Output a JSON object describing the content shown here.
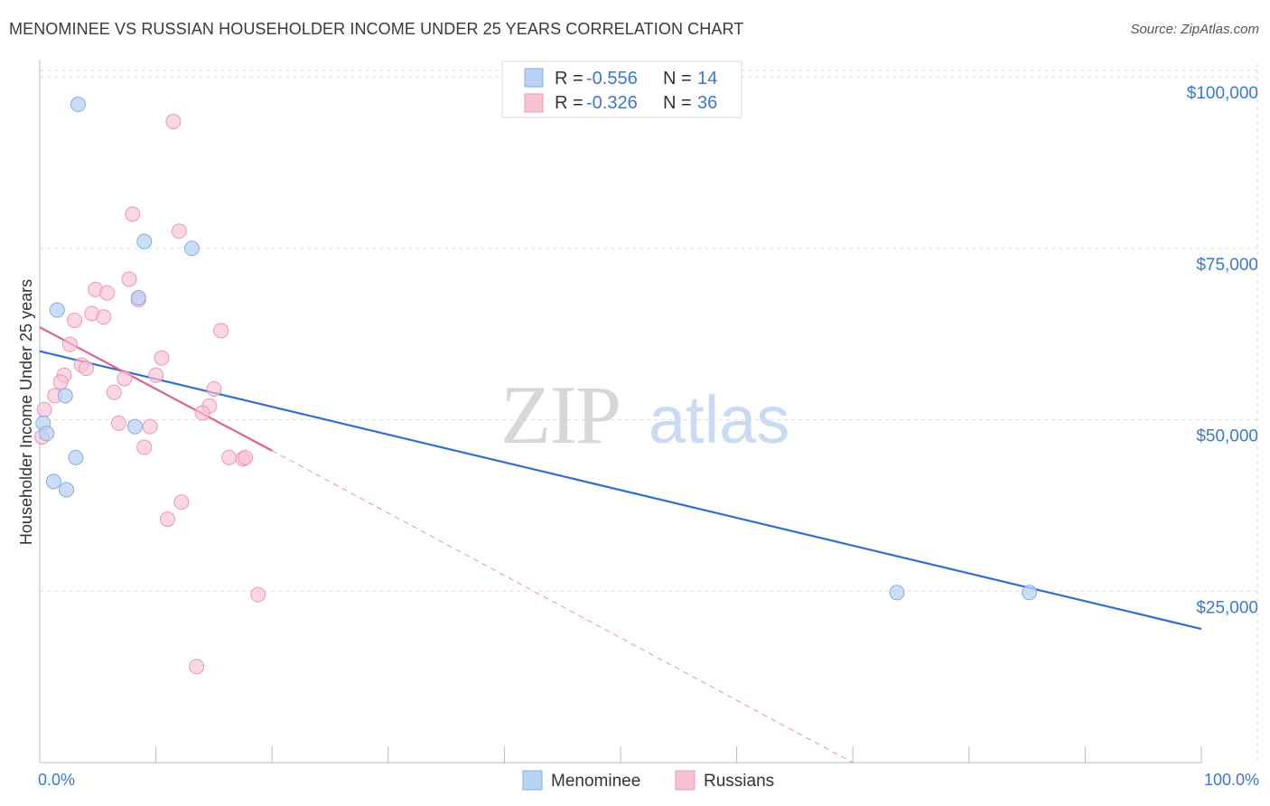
{
  "header": {
    "title": "MENOMINEE VS RUSSIAN HOUSEHOLDER INCOME UNDER 25 YEARS CORRELATION CHART",
    "source": "Source: ZipAtlas.com"
  },
  "watermark": {
    "zip": "ZIP",
    "atlas": "atlas"
  },
  "legend": {
    "rows": [
      {
        "r_label": "R =",
        "r_value": "-0.556",
        "n_label": "N =",
        "n_value": "14"
      },
      {
        "r_label": "R =",
        "r_value": "-0.326",
        "n_label": "N =",
        "n_value": "36"
      }
    ]
  },
  "colors": {
    "menominee_fill": "#b9d3f5",
    "menominee_stroke": "#86acdf",
    "menominee_line": "#2f6fd0",
    "russians_fill": "#f7c2d3",
    "russians_stroke": "#eb98b4",
    "russians_line": "#e0628f",
    "tick_text": "#3b78d0",
    "grid": "#dddddd"
  },
  "chart_data": {
    "type": "scatter",
    "title": "MENOMINEE VS RUSSIAN HOUSEHOLDER INCOME UNDER 25 YEARS CORRELATION CHART",
    "xlabel": "",
    "ylabel": "Householder Income Under 25 years",
    "xlim": [
      0,
      100
    ],
    "ylim": [
      0,
      102000
    ],
    "x_tick_labels": [
      "0.0%",
      "100.0%"
    ],
    "y_ticks": [
      25000,
      50000,
      75000,
      100000
    ],
    "y_tick_labels": [
      "$25,000",
      "$50,000",
      "$75,000",
      "$100,000"
    ],
    "series": [
      {
        "name": "Menominee",
        "points": [
          {
            "x": 3.3,
            "y": 96000
          },
          {
            "x": 9.0,
            "y": 76000
          },
          {
            "x": 13.1,
            "y": 75000
          },
          {
            "x": 8.5,
            "y": 67800
          },
          {
            "x": 1.5,
            "y": 66000
          },
          {
            "x": 2.2,
            "y": 53500
          },
          {
            "x": 8.2,
            "y": 49000
          },
          {
            "x": 0.3,
            "y": 49500
          },
          {
            "x": 0.6,
            "y": 48000
          },
          {
            "x": 3.1,
            "y": 44500
          },
          {
            "x": 1.2,
            "y": 41000
          },
          {
            "x": 2.3,
            "y": 39800
          },
          {
            "x": 73.8,
            "y": 24800
          },
          {
            "x": 85.2,
            "y": 24800
          }
        ],
        "trend": {
          "x0": 0,
          "y0": 60000,
          "x1": 100,
          "y1": 19500
        }
      },
      {
        "name": "Russians",
        "points": [
          {
            "x": 11.5,
            "y": 93500
          },
          {
            "x": 8.0,
            "y": 80000
          },
          {
            "x": 12.0,
            "y": 77500
          },
          {
            "x": 7.7,
            "y": 70500
          },
          {
            "x": 4.8,
            "y": 69000
          },
          {
            "x": 5.8,
            "y": 68500
          },
          {
            "x": 8.5,
            "y": 67500
          },
          {
            "x": 4.5,
            "y": 65500
          },
          {
            "x": 3.0,
            "y": 64500
          },
          {
            "x": 5.5,
            "y": 65000
          },
          {
            "x": 15.6,
            "y": 63000
          },
          {
            "x": 2.6,
            "y": 61000
          },
          {
            "x": 10.5,
            "y": 59000
          },
          {
            "x": 3.6,
            "y": 58000
          },
          {
            "x": 4.0,
            "y": 57500
          },
          {
            "x": 2.1,
            "y": 56500
          },
          {
            "x": 7.3,
            "y": 56000
          },
          {
            "x": 10.0,
            "y": 56500
          },
          {
            "x": 1.8,
            "y": 55500
          },
          {
            "x": 6.4,
            "y": 54000
          },
          {
            "x": 15.0,
            "y": 54500
          },
          {
            "x": 1.3,
            "y": 53500
          },
          {
            "x": 14.6,
            "y": 52000
          },
          {
            "x": 0.4,
            "y": 51500
          },
          {
            "x": 14.0,
            "y": 51000
          },
          {
            "x": 6.8,
            "y": 49500
          },
          {
            "x": 9.5,
            "y": 49000
          },
          {
            "x": 0.2,
            "y": 47500
          },
          {
            "x": 9.0,
            "y": 46000
          },
          {
            "x": 16.3,
            "y": 44500
          },
          {
            "x": 17.5,
            "y": 44300
          },
          {
            "x": 17.7,
            "y": 44500
          },
          {
            "x": 12.2,
            "y": 38000
          },
          {
            "x": 11.0,
            "y": 35500
          },
          {
            "x": 18.8,
            "y": 24500
          },
          {
            "x": 13.5,
            "y": 14000
          }
        ],
        "trend": {
          "x0": 0,
          "y0": 63500,
          "x1": 20,
          "y1": 45500
        },
        "trend_extension": {
          "x0": 20,
          "y0": 45500,
          "x1": 70,
          "y1": 0
        }
      }
    ]
  },
  "bottom_legend": {
    "items": [
      {
        "label": "Menominee"
      },
      {
        "label": "Russians"
      }
    ]
  }
}
